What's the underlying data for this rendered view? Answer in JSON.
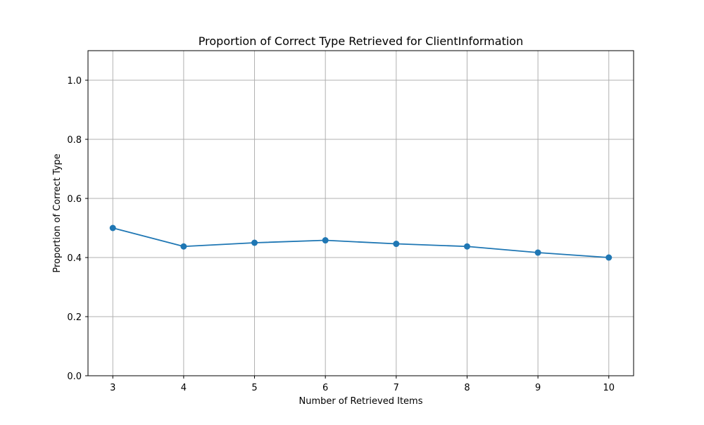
{
  "chart_data": {
    "type": "line",
    "title": "Proportion of Correct Type Retrieved for ClientInformation",
    "xlabel": "Number of Retrieved Items",
    "ylabel": "Proportion of Correct Type",
    "x": [
      3,
      4,
      5,
      6,
      7,
      8,
      9,
      10
    ],
    "series": [
      {
        "values": [
          0.5,
          0.4375,
          0.45,
          0.4583,
          0.4464,
          0.4375,
          0.4167,
          0.4
        ],
        "color": "#1f77b4",
        "marker": "circle"
      }
    ],
    "xticks": [
      "3",
      "4",
      "5",
      "6",
      "7",
      "8",
      "9",
      "10"
    ],
    "yticks": [
      "0.0",
      "0.2",
      "0.4",
      "0.6",
      "0.8",
      "1.0"
    ],
    "xlim": [
      2.65,
      10.35
    ],
    "ylim": [
      0,
      1.1
    ],
    "grid": true,
    "legend": "none"
  }
}
